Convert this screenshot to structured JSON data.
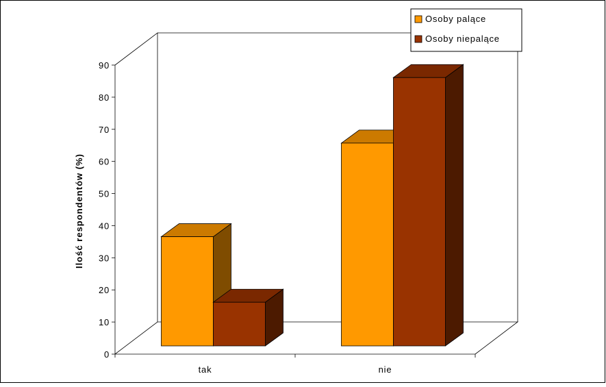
{
  "chart_data": {
    "type": "bar",
    "title": "",
    "xlabel": "",
    "ylabel": "Ilość respondentów (%)",
    "ylim": [
      0,
      90
    ],
    "yticks": [
      "0",
      "10",
      "20",
      "30",
      "40",
      "50",
      "60",
      "70",
      "80",
      "90"
    ],
    "categories": [
      "tak",
      "nie"
    ],
    "series": [
      {
        "name": "Osoby palące",
        "values": [
          35,
          65
        ],
        "color": "#ff9900",
        "top_color": "#cc7a00",
        "side_color": "#7f4c00"
      },
      {
        "name": "Osoby niepalące",
        "values": [
          14,
          86
        ],
        "color": "#993300",
        "top_color": "#7a2800",
        "side_color": "#4c1a00"
      }
    ],
    "legend": "top-right",
    "grid": false,
    "style": "3d-clustered"
  }
}
